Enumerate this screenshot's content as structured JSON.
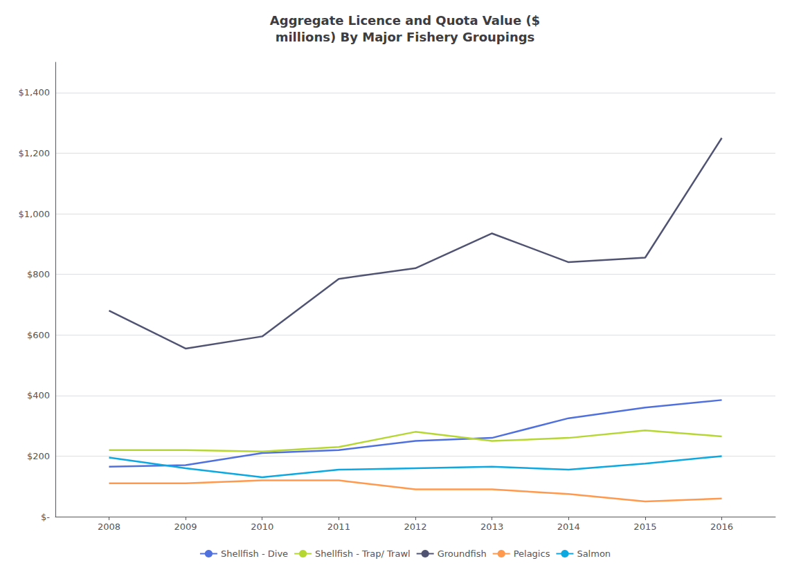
{
  "chart_data": {
    "type": "line",
    "title": "Aggregate Licence and Quota Value ($\nmillions) By Major Fishery Groupings",
    "x": [
      2008,
      2009,
      2010,
      2011,
      2012,
      2013,
      2014,
      2015,
      2016
    ],
    "xlim": [
      2007.3,
      2016.7
    ],
    "xticks": [
      2008,
      2009,
      2010,
      2011,
      2012,
      2013,
      2014,
      2015,
      2016
    ],
    "series": [
      {
        "name": "Shellfish - Dive",
        "values": [
          165,
          170,
          210,
          220,
          250,
          260,
          325,
          360,
          385
        ]
      },
      {
        "name": "Shellfish - Trap/ Trawl",
        "values": [
          220,
          220,
          215,
          230,
          280,
          250,
          260,
          285,
          265
        ]
      },
      {
        "name": "Groundfish",
        "values": [
          680,
          555,
          595,
          785,
          820,
          935,
          840,
          855,
          1250
        ]
      },
      {
        "name": "Pelagics",
        "values": [
          110,
          110,
          120,
          120,
          90,
          90,
          75,
          50,
          60
        ]
      },
      {
        "name": "Salmon",
        "values": [
          195,
          160,
          130,
          155,
          160,
          165,
          155,
          175,
          200
        ]
      }
    ],
    "ylim": [
      0,
      1500
    ],
    "yticks": [
      {
        "value": 0,
        "label": "$-"
      },
      {
        "value": 200,
        "label": "$200"
      },
      {
        "value": 400,
        "label": "$400"
      },
      {
        "value": 600,
        "label": "$600"
      },
      {
        "value": 800,
        "label": "$800"
      },
      {
        "value": 1000,
        "label": "$1,000"
      },
      {
        "value": 1200,
        "label": "$1,200"
      },
      {
        "value": 1400,
        "label": "$1,400"
      }
    ],
    "grid": true,
    "legend": "bottom"
  }
}
